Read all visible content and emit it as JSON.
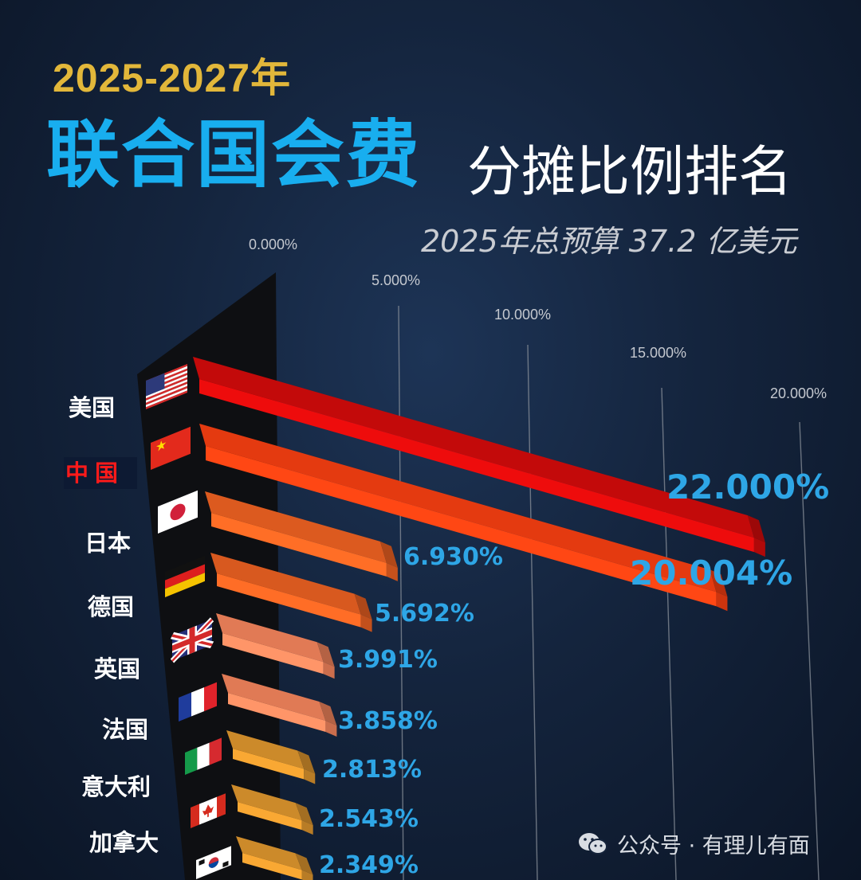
{
  "header": {
    "year_range": "2025-2027年",
    "title_main": "联合国会费",
    "title_sub": "分摊比例排名",
    "budget": "2025年总预算 37.2 亿美元"
  },
  "watermark": {
    "text": "公众号 · 有理儿有面",
    "icon": "wechat-icon"
  },
  "colors": {
    "title_year": "#e2b73a",
    "title_main": "#18aeef",
    "value_label": "#2ea6e6",
    "highlight_label": "#ff1a1a"
  },
  "chart_data": {
    "type": "bar",
    "orientation": "horizontal",
    "style": "3d",
    "x_ticks": [
      "0.000%",
      "5.000%",
      "10.000%",
      "15.000%",
      "20.000%"
    ],
    "xlim": [
      0,
      22
    ],
    "grid": true,
    "categories": [
      "美国",
      "中国",
      "日本",
      "德国",
      "英国",
      "法国",
      "意大利",
      "加拿大",
      "韩国"
    ],
    "values": [
      22.0,
      20.004,
      6.93,
      5.692,
      3.991,
      3.858,
      2.813,
      2.543,
      2.349
    ],
    "value_labels": [
      "22.000%",
      "20.004%",
      "6.930%",
      "5.692%",
      "3.991%",
      "3.858%",
      "2.813%",
      "2.543%",
      "2.349%"
    ],
    "flags": [
      "us-flag-icon",
      "china-flag-icon",
      "japan-flag-icon",
      "germany-flag-icon",
      "uk-flag-icon",
      "france-flag-icon",
      "italy-flag-icon",
      "canada-flag-icon",
      "korea-flag-icon"
    ],
    "highlight": "中国",
    "bar_colors": [
      "#c30a0a",
      "#e43a10",
      "#dc5a1f",
      "#d8591f",
      "#e17a55",
      "#e07a55",
      "#cc8a2a",
      "#cc8a2a",
      "#cc8a2a"
    ]
  }
}
